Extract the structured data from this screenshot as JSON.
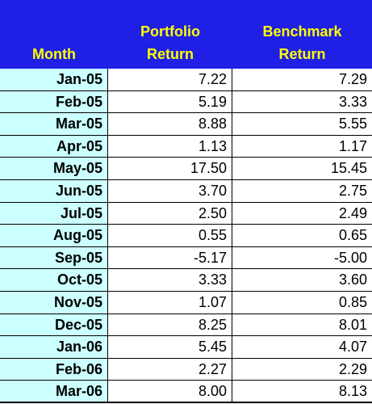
{
  "header": {
    "month_label": "Month",
    "portfolio_label_line1": "Portfolio",
    "portfolio_label_line2": "Return",
    "benchmark_label_line1": "Benchmark",
    "benchmark_label_line2": "Return"
  },
  "colors": {
    "header_bg": "#1f1fe6",
    "header_text": "#ffff00",
    "month_col_bg": "#ccffff"
  },
  "rows": [
    {
      "month": "Jan-05",
      "portfolio": "7.22",
      "benchmark": "7.29"
    },
    {
      "month": "Feb-05",
      "portfolio": "5.19",
      "benchmark": "3.33"
    },
    {
      "month": "Mar-05",
      "portfolio": "8.88",
      "benchmark": "5.55"
    },
    {
      "month": "Apr-05",
      "portfolio": "1.13",
      "benchmark": "1.17"
    },
    {
      "month": "May-05",
      "portfolio": "17.50",
      "benchmark": "15.45"
    },
    {
      "month": "Jun-05",
      "portfolio": "3.70",
      "benchmark": "2.75"
    },
    {
      "month": "Jul-05",
      "portfolio": "2.50",
      "benchmark": "2.49"
    },
    {
      "month": "Aug-05",
      "portfolio": "0.55",
      "benchmark": "0.65"
    },
    {
      "month": "Sep-05",
      "portfolio": "-5.17",
      "benchmark": "-5.00"
    },
    {
      "month": "Oct-05",
      "portfolio": "3.33",
      "benchmark": "3.60"
    },
    {
      "month": "Nov-05",
      "portfolio": "1.07",
      "benchmark": "0.85"
    },
    {
      "month": "Dec-05",
      "portfolio": "8.25",
      "benchmark": "8.01"
    },
    {
      "month": "Jan-06",
      "portfolio": "5.45",
      "benchmark": "4.07"
    },
    {
      "month": "Feb-06",
      "portfolio": "2.27",
      "benchmark": "2.29"
    },
    {
      "month": "Mar-06",
      "portfolio": "8.00",
      "benchmark": "8.13"
    }
  ]
}
